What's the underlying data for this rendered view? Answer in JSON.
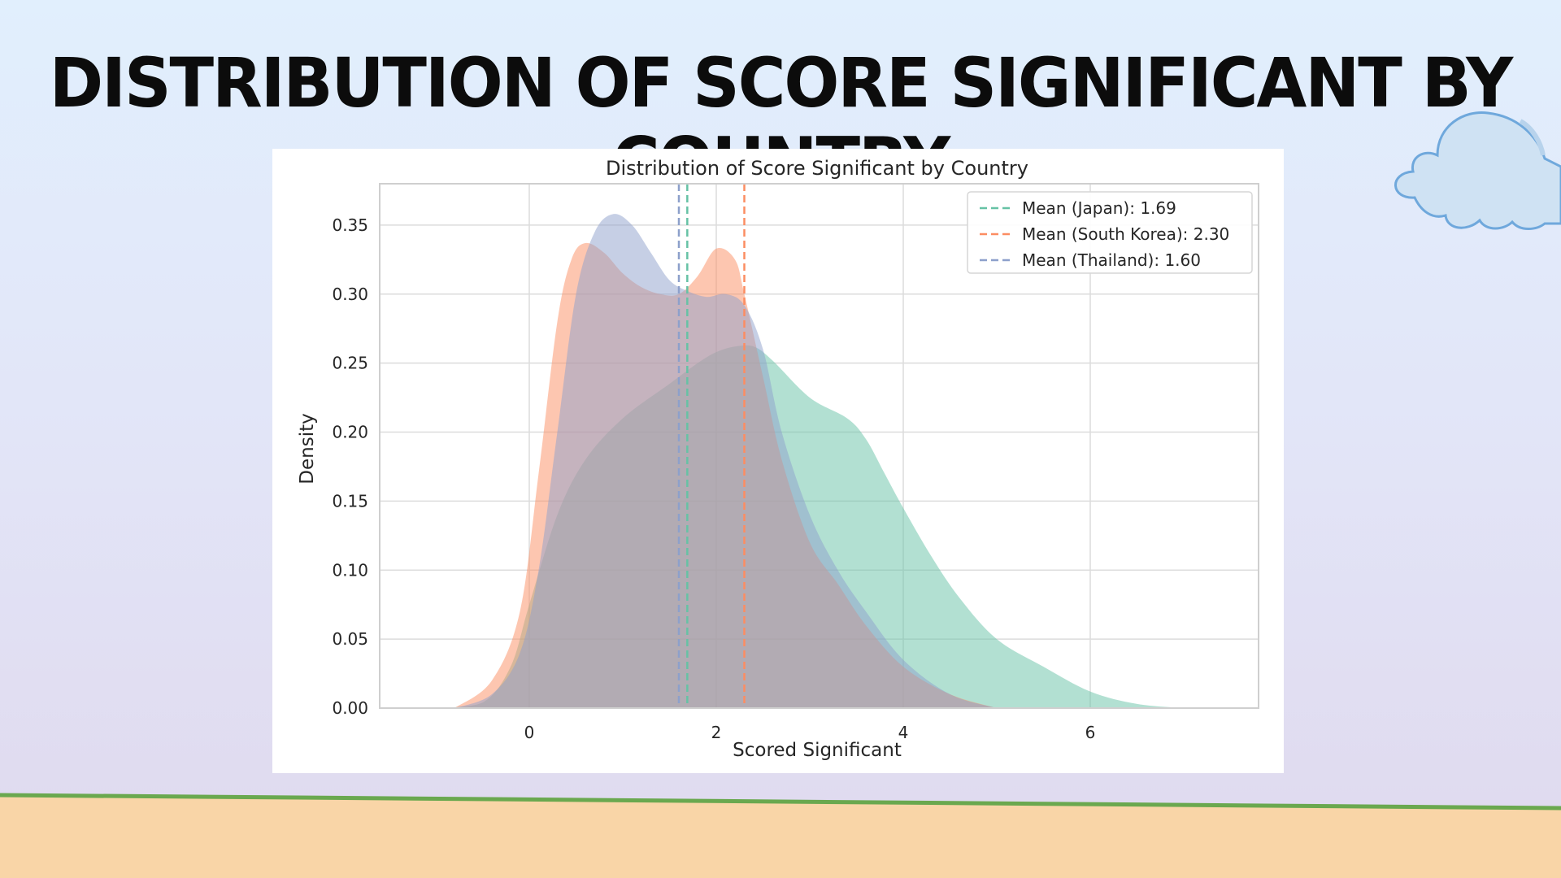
{
  "slide": {
    "title": "Distribution of Score Significant by Country"
  },
  "colors": {
    "japan": "#66c2a5",
    "south_korea": "#fc8d62",
    "thailand": "#8da0cb",
    "ground_line": "#6aa84f",
    "sand": "#f9d5a7",
    "cloud_fill": "#cfe2f3",
    "cloud_stroke": "#6fa8dc"
  },
  "icons": [
    "cloud-icon"
  ],
  "chart_data": {
    "type": "area",
    "title": "Distribution of Score Significant by Country",
    "xlabel": "Scored Significant",
    "ylabel": "Density",
    "xlim": [
      -1.6,
      7.8
    ],
    "ylim": [
      0,
      0.38
    ],
    "xticks": [
      0,
      2,
      4,
      6
    ],
    "yticks": [
      0.0,
      0.05,
      0.1,
      0.15,
      0.2,
      0.25,
      0.3,
      0.35
    ],
    "ytick_labels": [
      "0.00",
      "0.05",
      "0.10",
      "0.15",
      "0.20",
      "0.25",
      "0.30",
      "0.35"
    ],
    "grid": true,
    "legend_position": "top-right",
    "series": [
      {
        "key": "japan",
        "color": "#66c2a5",
        "x": [
          -1.0,
          -0.5,
          -0.2,
          0.0,
          0.3,
          0.6,
          1.0,
          1.5,
          1.8,
          2.0,
          2.2,
          2.4,
          2.6,
          3.0,
          3.4,
          3.6,
          3.8,
          4.0,
          4.3,
          4.6,
          5.0,
          5.5,
          6.0,
          6.5,
          7.0
        ],
        "y": [
          0.0,
          0.004,
          0.03,
          0.075,
          0.14,
          0.18,
          0.21,
          0.235,
          0.25,
          0.258,
          0.262,
          0.262,
          0.252,
          0.225,
          0.21,
          0.195,
          0.17,
          0.145,
          0.11,
          0.08,
          0.05,
          0.03,
          0.012,
          0.003,
          0.0
        ]
      },
      {
        "key": "south_korea",
        "color": "#fc8d62",
        "x": [
          -0.8,
          -0.4,
          -0.1,
          0.1,
          0.3,
          0.45,
          0.6,
          0.8,
          1.0,
          1.2,
          1.4,
          1.6,
          1.8,
          2.0,
          2.2,
          2.3,
          2.5,
          2.7,
          3.0,
          3.3,
          3.6,
          4.0,
          4.5,
          5.0
        ],
        "y": [
          0.0,
          0.02,
          0.07,
          0.17,
          0.28,
          0.325,
          0.337,
          0.33,
          0.315,
          0.305,
          0.3,
          0.3,
          0.313,
          0.333,
          0.325,
          0.3,
          0.24,
          0.18,
          0.12,
          0.09,
          0.06,
          0.03,
          0.01,
          0.0
        ]
      },
      {
        "key": "thailand",
        "color": "#8da0cb",
        "x": [
          -0.8,
          -0.4,
          -0.1,
          0.1,
          0.3,
          0.5,
          0.7,
          0.9,
          1.1,
          1.3,
          1.5,
          1.7,
          1.9,
          2.1,
          2.3,
          2.5,
          2.7,
          3.0,
          3.3,
          3.6,
          4.0,
          4.5,
          5.0
        ],
        "y": [
          0.0,
          0.01,
          0.04,
          0.1,
          0.2,
          0.3,
          0.345,
          0.358,
          0.35,
          0.33,
          0.31,
          0.302,
          0.298,
          0.3,
          0.292,
          0.26,
          0.2,
          0.14,
          0.1,
          0.07,
          0.035,
          0.01,
          0.0
        ]
      }
    ],
    "mean_lines": [
      {
        "key": "japan",
        "label": "Mean (Japan): 1.69",
        "x": 1.69,
        "color": "#66c2a5"
      },
      {
        "key": "south_korea",
        "label": "Mean (South Korea): 2.30",
        "x": 2.3,
        "color": "#fc8d62"
      },
      {
        "key": "thailand",
        "label": "Mean (Thailand): 1.60",
        "x": 1.6,
        "color": "#8da0cb"
      }
    ]
  }
}
